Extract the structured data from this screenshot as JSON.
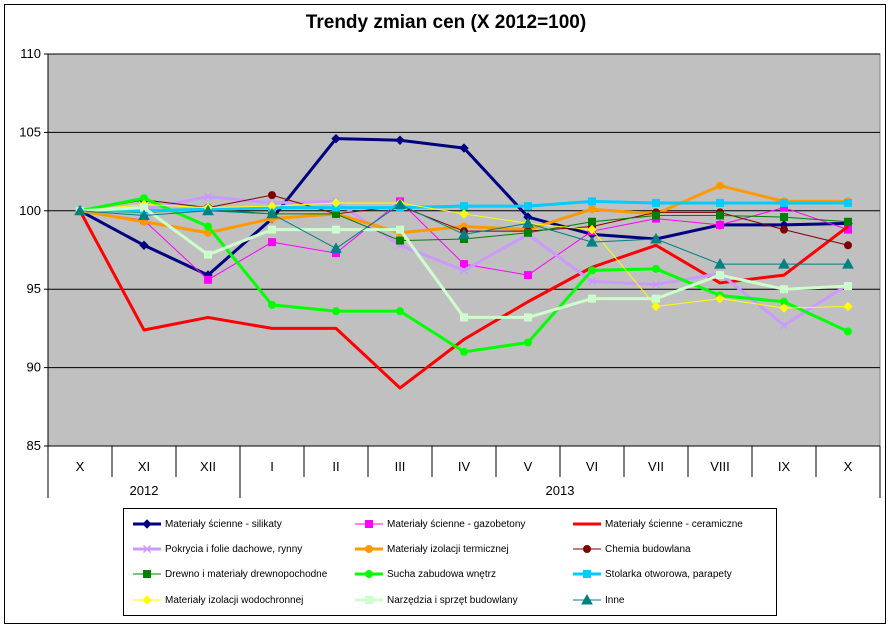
{
  "chart_data": {
    "type": "line",
    "title": "Trendy zmian cen (X 2012=100)",
    "xlabel": "",
    "ylabel": "",
    "ylim": [
      85,
      110
    ],
    "yticks": [
      85,
      90,
      95,
      100,
      105,
      110
    ],
    "grid": true,
    "plot_background": "#c0c0c0",
    "legend_position": "bottom",
    "categories": [
      "X",
      "XI",
      "XII",
      "I",
      "II",
      "III",
      "IV",
      "V",
      "VI",
      "VII",
      "VIII",
      "IX",
      "X"
    ],
    "year_groups": [
      {
        "label": "2012",
        "from": 0,
        "to": 2
      },
      {
        "label": "2013",
        "from": 3,
        "to": 12
      }
    ],
    "series": [
      {
        "name": "Materiały ścienne - silikaty",
        "color": "#000080",
        "marker": "diamond",
        "width": 3,
        "values": [
          100,
          97.8,
          95.9,
          99.5,
          104.6,
          104.5,
          104.0,
          99.6,
          98.5,
          98.2,
          99.1,
          99.1,
          99.2
        ]
      },
      {
        "name": "Materiały ścienne - gazobetony",
        "color": "#ff00ff",
        "marker": "square",
        "width": 1,
        "values": [
          100,
          99.4,
          95.6,
          98.0,
          97.3,
          100.6,
          96.6,
          95.9,
          98.7,
          99.5,
          99.1,
          100.2,
          98.8
        ]
      },
      {
        "name": "Materiały ścienne - ceramiczne",
        "color": "#ff0000",
        "marker": "none",
        "width": 3,
        "values": [
          100,
          92.4,
          93.2,
          92.5,
          92.5,
          88.7,
          91.8,
          94.2,
          96.4,
          97.8,
          95.4,
          95.9,
          99.0
        ]
      },
      {
        "name": "Pokrycia i folie dachowe, rynny",
        "color": "#cc99ff",
        "marker": "x",
        "width": 3,
        "values": [
          100,
          100.1,
          100.9,
          100.5,
          100.6,
          97.8,
          96.2,
          98.5,
          95.5,
          95.3,
          96.0,
          92.7,
          95.3
        ]
      },
      {
        "name": "Materiały izolacji termicznej",
        "color": "#ff9900",
        "marker": "circle",
        "width": 3,
        "values": [
          100,
          99.3,
          98.6,
          99.5,
          99.8,
          98.6,
          99.0,
          98.8,
          100.1,
          99.8,
          101.6,
          100.6,
          100.6
        ]
      },
      {
        "name": "Chemia budowlana",
        "color": "#800000",
        "marker": "circle",
        "width": 1,
        "values": [
          100,
          100.7,
          100.2,
          101.0,
          99.8,
          100.3,
          98.7,
          98.7,
          99.0,
          99.9,
          99.9,
          98.8,
          97.8
        ]
      },
      {
        "name": "Drewno i materiały drewnopochodne",
        "color": "#008000",
        "marker": "square",
        "width": 1,
        "values": [
          100,
          99.9,
          100.1,
          99.8,
          99.8,
          98.1,
          98.2,
          98.6,
          99.3,
          99.7,
          99.7,
          99.6,
          99.3
        ]
      },
      {
        "name": "Sucha zabudowa wnętrz",
        "color": "#00ff00",
        "marker": "circle",
        "width": 3,
        "values": [
          100,
          100.8,
          99.0,
          94.0,
          93.6,
          93.6,
          91.0,
          91.6,
          96.2,
          96.3,
          94.6,
          94.2,
          92.3
        ]
      },
      {
        "name": "Stolarka otworowa, parapety",
        "color": "#00ccff",
        "marker": "square",
        "width": 3,
        "values": [
          100,
          100.0,
          100.1,
          100.2,
          100.2,
          100.2,
          100.3,
          100.3,
          100.6,
          100.5,
          100.5,
          100.5,
          100.5
        ]
      },
      {
        "name": "Materiały izolacji wodochronnej",
        "color": "#ffff00",
        "marker": "diamond",
        "width": 1,
        "values": [
          100,
          100.4,
          100.2,
          100.3,
          100.5,
          100.5,
          99.8,
          99.2,
          98.8,
          93.9,
          94.4,
          93.8,
          93.9
        ]
      },
      {
        "name": "Narzędzia i sprzęt budowlany",
        "color": "#ccffcc",
        "marker": "square",
        "width": 3,
        "values": [
          100,
          100.2,
          97.2,
          98.8,
          98.8,
          98.8,
          93.2,
          93.2,
          94.4,
          94.4,
          95.9,
          95.0,
          95.2
        ]
      },
      {
        "name": "Inne",
        "color": "#008080",
        "marker": "triangle",
        "width": 1,
        "values": [
          100,
          99.7,
          100.0,
          99.8,
          97.6,
          100.4,
          98.5,
          99.2,
          98.0,
          98.2,
          96.6,
          96.6,
          96.6
        ]
      }
    ]
  }
}
